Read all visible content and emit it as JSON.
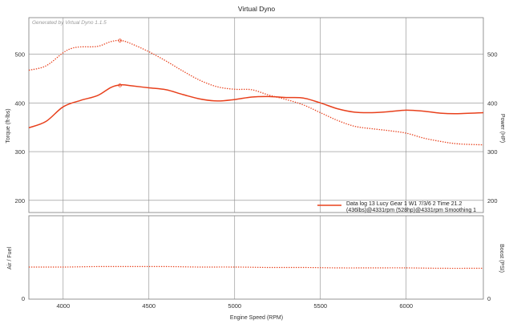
{
  "chart_data": [
    {
      "type": "line",
      "title": "Virtual Dyno",
      "watermark": "Generated by Virtual Dyno 1.1.5",
      "xlabel": "",
      "ylabel": "Torque (ft-lbs)",
      "ylabel_right": "Power (HP)",
      "xlim": [
        3800,
        6450
      ],
      "ylim": [
        175,
        575
      ],
      "x_ticks": [
        "4000",
        "4500",
        "5000",
        "5500",
        "6000"
      ],
      "y_ticks": [
        "200",
        "300",
        "400",
        "500"
      ],
      "y_ticks_right": [
        "200",
        "300",
        "400",
        "500"
      ],
      "grid": true,
      "series": [
        {
          "style": "solid",
          "color": "#e8401c",
          "x": [
            3800,
            3900,
            4000,
            4100,
            4200,
            4280,
            4340,
            4400,
            4500,
            4600,
            4700,
            4800,
            4900,
            5000,
            5100,
            5200,
            5300,
            5400,
            5500,
            5600,
            5700,
            5800,
            5900,
            6000,
            6100,
            6200,
            6300,
            6450
          ],
          "y": [
            349,
            362,
            392,
            405,
            415,
            432,
            437,
            435,
            431,
            427,
            417,
            408,
            404,
            407,
            412,
            413,
            411,
            410,
            400,
            388,
            381,
            380,
            382,
            385,
            383,
            379,
            378,
            380
          ]
        },
        {
          "style": "dotted",
          "color": "#e8401c",
          "x": [
            3800,
            3900,
            4000,
            4050,
            4100,
            4200,
            4280,
            4340,
            4400,
            4500,
            4600,
            4700,
            4800,
            4900,
            5000,
            5100,
            5200,
            5300,
            5400,
            5500,
            5600,
            5700,
            5800,
            5900,
            6000,
            6100,
            6200,
            6300,
            6450
          ],
          "y": [
            467,
            476,
            503,
            512,
            515,
            516,
            526,
            528,
            521,
            505,
            486,
            465,
            446,
            433,
            428,
            427,
            416,
            407,
            396,
            380,
            364,
            352,
            347,
            343,
            338,
            328,
            321,
            316,
            314
          ]
        }
      ],
      "peaks": [
        {
          "x": 4331,
          "y": 436
        },
        {
          "x": 4331,
          "y": 528
        }
      ],
      "legend": {
        "placement": "bottom-right",
        "lines": [
          "Data log 13 Lucy Gear 1 W1 7/3/6 2 Time 21.2",
          "(436lbs)@4331rpm (528hp)@4331rpm Smoothing 1"
        ]
      }
    },
    {
      "type": "line",
      "title": "",
      "xlabel": "Engine Speed (RPM)",
      "ylabel": "Air / Fuel",
      "ylabel_right": "Boost (PSI)",
      "xlim": [
        3800,
        6450
      ],
      "ylim": [
        0,
        1
      ],
      "x_ticks": [
        "4000",
        "4500",
        "5000",
        "5500",
        "6000"
      ],
      "y_ticks": [
        "0"
      ],
      "y_ticks_right": [
        "0"
      ],
      "grid": true,
      "series": [
        {
          "style": "dotted",
          "color": "#e8401c",
          "x": [
            3800,
            4000,
            4200,
            4400,
            4600,
            4800,
            5000,
            5200,
            5400,
            5600,
            5800,
            6000,
            6200,
            6450
          ],
          "y": [
            0.385,
            0.385,
            0.39,
            0.39,
            0.39,
            0.385,
            0.385,
            0.38,
            0.38,
            0.375,
            0.375,
            0.375,
            0.37,
            0.37
          ]
        }
      ]
    }
  ]
}
